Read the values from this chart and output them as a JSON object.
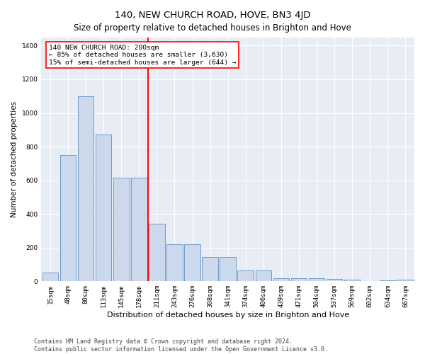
{
  "title": "140, NEW CHURCH ROAD, HOVE, BN3 4JD",
  "subtitle": "Size of property relative to detached houses in Brighton and Hove",
  "xlabel": "Distribution of detached houses by size in Brighton and Hove",
  "ylabel": "Number of detached properties",
  "bar_labels": [
    "15sqm",
    "48sqm",
    "80sqm",
    "113sqm",
    "145sqm",
    "178sqm",
    "211sqm",
    "243sqm",
    "276sqm",
    "308sqm",
    "341sqm",
    "374sqm",
    "406sqm",
    "439sqm",
    "471sqm",
    "504sqm",
    "537sqm",
    "569sqm",
    "602sqm",
    "634sqm",
    "667sqm"
  ],
  "bar_values": [
    50,
    750,
    1100,
    870,
    615,
    615,
    340,
    220,
    220,
    145,
    145,
    65,
    65,
    20,
    18,
    18,
    12,
    8,
    0,
    4,
    8
  ],
  "bar_color": "#ccd9ed",
  "bar_edge_color": "#6090c0",
  "vline_bin": 6,
  "vline_color": "red",
  "annotation_text": "140 NEW CHURCH ROAD: 200sqm\n← 85% of detached houses are smaller (3,630)\n15% of semi-detached houses are larger (644) →",
  "annotation_box_color": "white",
  "annotation_box_edge": "red",
  "ylim": [
    0,
    1450
  ],
  "yticks": [
    0,
    200,
    400,
    600,
    800,
    1000,
    1200,
    1400
  ],
  "background_color": "#e8edf5",
  "footer_line1": "Contains HM Land Registry data © Crown copyright and database right 2024.",
  "footer_line2": "Contains public sector information licensed under the Open Government Licence v3.0.",
  "title_fontsize": 9.5,
  "subtitle_fontsize": 8.5,
  "xlabel_fontsize": 8,
  "ylabel_fontsize": 7.5,
  "tick_fontsize": 6.5,
  "annot_fontsize": 6.8,
  "footer_fontsize": 6
}
